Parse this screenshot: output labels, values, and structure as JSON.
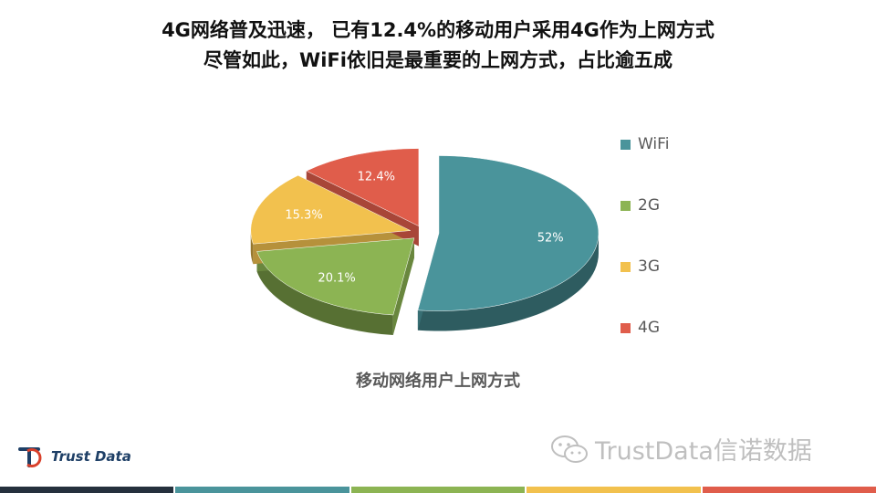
{
  "slide": {
    "title_line_1": "4G网络普及迅速， 已有12.4%的移动用户采用4G作为上网方式",
    "title_line_2": "尽管如此，WiFi依旧是最重要的上网方式，占比逾五成",
    "caption": "移动网络用户上网方式"
  },
  "chart_data": {
    "type": "pie",
    "title": "移动网络用户上网方式",
    "style": "3d-exploded",
    "legend_position": "right",
    "slices": [
      {
        "name": "WiFi",
        "value": 52,
        "label": "52%",
        "color": "#4a949b"
      },
      {
        "name": "2G",
        "value": 20.1,
        "label": "20.1%",
        "color": "#8cb453"
      },
      {
        "name": "3G",
        "value": 15.3,
        "label": "15.3%",
        "color": "#f2c14e"
      },
      {
        "name": "4G",
        "value": 12.4,
        "label": "12.4%",
        "color": "#e05d4b"
      }
    ]
  },
  "footer": {
    "brand": "Trust Data",
    "watermark": "TrustData信诺数据",
    "logo_icon": "trust-data-logo-icon",
    "watermark_icon": "wechat-icon",
    "bar_colors": [
      "#25303d",
      "#4a949b",
      "#8cb453",
      "#f2c14e",
      "#e05d4b"
    ]
  }
}
